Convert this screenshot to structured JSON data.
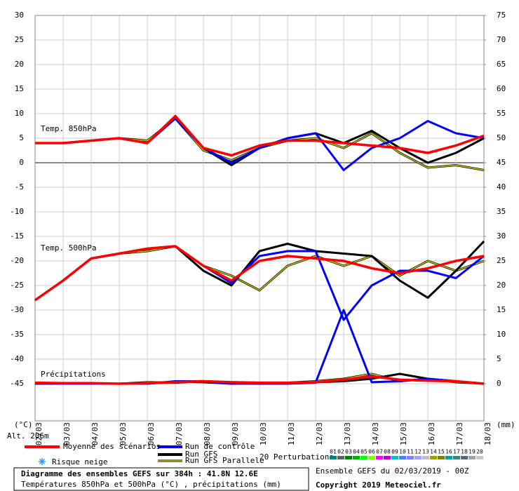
{
  "chart_data": {
    "type": "line",
    "title": "Diagramme des ensembles GEFS sur 384h : 41.8N 12.6E",
    "subtitle": "Températures 850hPa et 500hPa (°C) , précipitations (mm)",
    "y_unit": "(°C)",
    "y2_unit": "(mm)",
    "altitude": "Alt. 206m",
    "run_info": "Ensemble GEFS du 02/03/2019 - 00Z",
    "copyright": "Copyright 2019 Meteociel.fr",
    "snow_label": "Risque neige",
    "perturbations_label": "20 Perturbations",
    "categories": [
      "02/03",
      "03/03",
      "04/03",
      "05/03",
      "06/03",
      "07/03",
      "08/03",
      "09/03",
      "10/03",
      "11/03",
      "12/03",
      "13/03",
      "14/03",
      "15/03",
      "16/03",
      "17/03",
      "18/03"
    ],
    "ylim": [
      -45,
      30
    ],
    "yticks": [
      30,
      25,
      20,
      15,
      10,
      5,
      0,
      -5,
      -10,
      -15,
      -20,
      -25,
      -30,
      -35,
      -40,
      -45
    ],
    "y2lim": [
      0,
      75
    ],
    "y2ticks": [
      75,
      70,
      65,
      60,
      55,
      50,
      45,
      40,
      35,
      30,
      25,
      20,
      15,
      10,
      5,
      0
    ],
    "grid": true,
    "variables": [
      {
        "label": "Temp. 850hPa",
        "axis": "y"
      },
      {
        "label": "Temp. 500hPa",
        "axis": "y"
      },
      {
        "label": "Précipitations",
        "axis": "y2"
      }
    ],
    "series": [
      {
        "name": "Run GFS Parallele",
        "color": "#c8c800",
        "values": [
          [
            4,
            4,
            4.5,
            5,
            4.5,
            9,
            2.5,
            0.5,
            3,
            4.5,
            5,
            3,
            6,
            2,
            -1,
            -0.5,
            -1.5
          ],
          [
            -28,
            -24,
            -19.5,
            -18.5,
            -18,
            -17,
            -21,
            -23,
            -26,
            -21,
            -19,
            -21,
            -19,
            -23,
            -20,
            -22,
            -20
          ],
          [
            0,
            0,
            0,
            0,
            0.3,
            0.2,
            0.5,
            0.1,
            0,
            0.2,
            0.5,
            1,
            2,
            0.5,
            1,
            0.3,
            0
          ]
        ]
      },
      {
        "name": "Run GFS",
        "color": "#000000",
        "values": [
          [
            4,
            4,
            4.5,
            5,
            4,
            9.5,
            3,
            -0.5,
            3,
            5,
            6,
            4,
            6.5,
            3,
            0,
            2,
            5
          ],
          [
            -28,
            -24,
            -19.5,
            -18.5,
            -17.5,
            -17,
            -22,
            -25,
            -18,
            -16.5,
            -18,
            -18.5,
            -19,
            -24,
            -27.5,
            -22,
            -16
          ],
          [
            0,
            0,
            0,
            0,
            0,
            0.4,
            0.3,
            0,
            0,
            0.1,
            0.3,
            0.5,
            1,
            2,
            1,
            0.5,
            0
          ]
        ]
      },
      {
        "name": "Run de contrôle",
        "color": "#0000ff",
        "values": [
          [
            4,
            4,
            4.5,
            5,
            4,
            9,
            3,
            0,
            3,
            5,
            6,
            -1.5,
            3,
            5,
            8.5,
            6,
            5
          ],
          [
            -28,
            -24,
            -19.5,
            -18.5,
            -17.5,
            -17,
            -21,
            -24.5,
            -19,
            -18,
            -18,
            -32,
            -25,
            -22,
            -22,
            -23.5,
            -19
          ],
          [
            0,
            0,
            0,
            0,
            0,
            0.5,
            0.5,
            0,
            0,
            0,
            0.2,
            15,
            0.3,
            0.5,
            1,
            0.5,
            0
          ]
        ]
      },
      {
        "name": "Moyenne des scénarios",
        "color": "#ff0000",
        "values": [
          [
            4,
            4,
            4.5,
            5,
            4,
            9.5,
            3,
            1.5,
            3.5,
            4.5,
            4.5,
            4,
            3.5,
            3,
            2,
            3.5,
            5.5
          ],
          [
            -28,
            -24,
            -19.5,
            -18.5,
            -17.5,
            -17,
            -21,
            -24,
            -20,
            -19,
            -19.5,
            -20,
            -21.5,
            -22.5,
            -21.5,
            -20,
            -19
          ],
          [
            0.2,
            0.1,
            0.1,
            0,
            0.1,
            0.3,
            0.5,
            0.3,
            0.2,
            0.2,
            0.3,
            0.8,
            1.5,
            0.8,
            0.6,
            0.5,
            0
          ]
        ]
      }
    ],
    "perturbations": [
      {
        "name": "01",
        "color": "#008080"
      },
      {
        "name": "02",
        "color": "#606060"
      },
      {
        "name": "03",
        "color": "#008000"
      },
      {
        "name": "04",
        "color": "#00b000"
      },
      {
        "name": "05",
        "color": "#00ff00"
      },
      {
        "name": "06",
        "color": "#80ff00"
      },
      {
        "name": "07",
        "color": "#ff00ff"
      },
      {
        "name": "08",
        "color": "#c000c0"
      },
      {
        "name": "09",
        "color": "#00c0c0"
      },
      {
        "name": "10",
        "color": "#4080ff"
      },
      {
        "name": "11",
        "color": "#8080ff"
      },
      {
        "name": "12",
        "color": "#a0a0ff"
      },
      {
        "name": "13",
        "color": "#c0c0c0"
      },
      {
        "name": "14",
        "color": "#a0a000"
      },
      {
        "name": "15",
        "color": "#808000"
      },
      {
        "name": "16",
        "color": "#00a0a0"
      },
      {
        "name": "17",
        "color": "#408080"
      },
      {
        "name": "18",
        "color": "#606080"
      },
      {
        "name": "19",
        "color": "#a0a0a0"
      },
      {
        "name": "20",
        "color": "#c8c8c8"
      }
    ]
  }
}
